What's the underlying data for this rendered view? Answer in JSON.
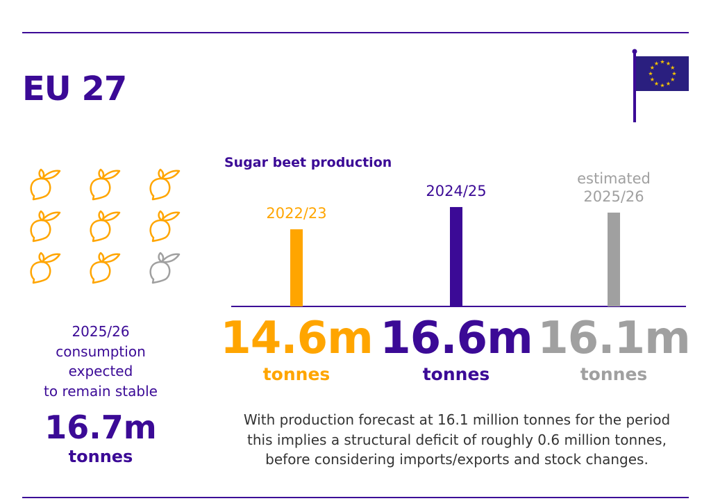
{
  "header": {
    "title": "EU 27",
    "flag_icon": "eu-flag-icon"
  },
  "colors": {
    "purple": "#3b0a96",
    "orange": "#ffa500",
    "gray": "#a0a0a0",
    "flag_blue": "#2a1f7f",
    "star": "#f5c400"
  },
  "consumption": {
    "icons": {
      "name": "sugar-beet-icon",
      "total": 9,
      "highlighted": 8
    },
    "lines": [
      "2025/26",
      "consumption",
      "expected",
      "to remain stable"
    ],
    "value": "16.7m",
    "unit": "tonnes"
  },
  "chart_data": {
    "type": "bar",
    "title": "Sugar beet production",
    "categories": [
      "2022/23",
      "2024/25",
      "estimated 2025/26"
    ],
    "category_lines": [
      [
        "2022/23"
      ],
      [
        "2024/25"
      ],
      [
        "estimated",
        "2025/26"
      ]
    ],
    "values": [
      14.6,
      16.6,
      16.1
    ],
    "value_labels": [
      "14.6m",
      "16.6m",
      "16.1m"
    ],
    "unit": "tonnes",
    "bar_colors": [
      "#ffa500",
      "#3b0a96",
      "#a0a0a0"
    ],
    "ylim": [
      7.6,
      17.5
    ],
    "grid": false
  },
  "note": [
    "With production forecast at 16.1 million tonnes for the period",
    "this implies a structural deficit of roughly 0.6 million tonnes,",
    "before considering imports/exports and stock changes."
  ]
}
